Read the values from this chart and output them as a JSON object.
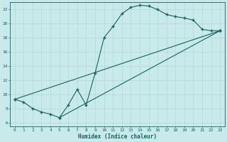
{
  "xlabel": "Humidex (Indice chaleur)",
  "bg_color": "#c8eaea",
  "grid_color": "#b0d8d8",
  "line_color": "#1a6060",
  "xlim": [
    -0.5,
    23.5
  ],
  "ylim": [
    5.5,
    23.0
  ],
  "xticks": [
    0,
    1,
    2,
    3,
    4,
    5,
    6,
    7,
    8,
    9,
    10,
    11,
    12,
    13,
    14,
    15,
    16,
    17,
    18,
    19,
    20,
    21,
    22,
    23
  ],
  "yticks": [
    6,
    8,
    10,
    12,
    14,
    16,
    18,
    20,
    22
  ],
  "line1_x": [
    0,
    1,
    2,
    3,
    4,
    5,
    6,
    7,
    8,
    9,
    10,
    11,
    12,
    13,
    14,
    15,
    16,
    17,
    18,
    19,
    20,
    21,
    22,
    23
  ],
  "line1_y": [
    9.3,
    8.9,
    8.0,
    7.5,
    7.2,
    6.7,
    8.5,
    10.7,
    8.5,
    13.0,
    18.0,
    19.6,
    21.4,
    22.3,
    22.6,
    22.5,
    22.0,
    21.3,
    21.0,
    20.8,
    20.5,
    19.2,
    19.0,
    19.0
  ],
  "line2_x": [
    0,
    23
  ],
  "line2_y": [
    9.3,
    19.0
  ],
  "line3_x": [
    5,
    23
  ],
  "line3_y": [
    6.7,
    19.0
  ]
}
